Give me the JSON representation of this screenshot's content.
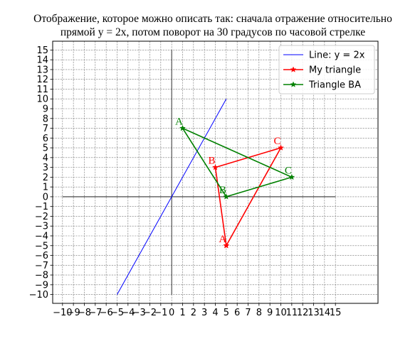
{
  "chart_data": {
    "type": "line",
    "title_lines": [
      "Отображение, которое можно описать так: сначала отражение относительно",
      "прямой y = 2x, потом поворот на 30 градусов по часовой стрелке"
    ],
    "xlim": [
      -10.9,
      18.9
    ],
    "ylim": [
      -10.9,
      15.9
    ],
    "x_ticks": [
      -10,
      -9,
      -8,
      -7,
      -6,
      -5,
      -4,
      -3,
      -2,
      -1,
      0,
      1,
      2,
      3,
      4,
      5,
      6,
      7,
      8,
      9,
      10,
      11,
      12,
      13,
      14,
      15
    ],
    "y_ticks": [
      -10,
      -9,
      -8,
      -7,
      -6,
      -5,
      -4,
      -3,
      -2,
      -1,
      0,
      1,
      2,
      3,
      4,
      5,
      6,
      7,
      8,
      9,
      10,
      11,
      12,
      13,
      14,
      15
    ],
    "x_tick_labels": [
      "−10",
      "−9",
      "−8",
      "−7",
      "−6",
      "−5",
      "−4",
      "−3",
      "−2",
      "−1",
      "0",
      "1",
      "2",
      "3",
      "4",
      "5",
      "6",
      "7",
      "8",
      "9",
      "10",
      "11",
      "12",
      "13",
      "14",
      "15"
    ],
    "y_tick_labels": [
      "−10",
      "−9",
      "−8",
      "−7",
      "−6",
      "−5",
      "−4",
      "−3",
      "−2",
      "−1",
      "0",
      "1",
      "2",
      "3",
      "4",
      "5",
      "6",
      "7",
      "8",
      "9",
      "10",
      "11",
      "12",
      "13",
      "14",
      "15"
    ],
    "grid": true,
    "axes_lines": {
      "x_from": -10,
      "x_to": 15,
      "y_from": -10,
      "y_to": 15
    },
    "legend_position": "top-right",
    "series": [
      {
        "name": "Line: y = 2x",
        "kind": "line",
        "color": "#0000ff",
        "x": [
          -5,
          5
        ],
        "y": [
          -10,
          10
        ]
      },
      {
        "name": "My triangle",
        "kind": "triangle",
        "color": "#ff0000",
        "x": [
          5,
          4,
          10,
          5
        ],
        "y": [
          -5,
          3,
          5,
          -5
        ],
        "vertex_labels": [
          {
            "text": "A",
            "x": 5,
            "y": -5
          },
          {
            "text": "B",
            "x": 4,
            "y": 3
          },
          {
            "text": "C",
            "x": 10,
            "y": 5
          }
        ]
      },
      {
        "name": "Triangle BA",
        "kind": "triangle",
        "color": "#008000",
        "x": [
          1,
          5,
          11,
          1
        ],
        "y": [
          7,
          0,
          2,
          7
        ],
        "vertex_labels": [
          {
            "text": "A",
            "x": 1,
            "y": 7
          },
          {
            "text": "B",
            "x": 5,
            "y": 0
          },
          {
            "text": "C",
            "x": 11,
            "y": 2
          }
        ]
      }
    ]
  }
}
